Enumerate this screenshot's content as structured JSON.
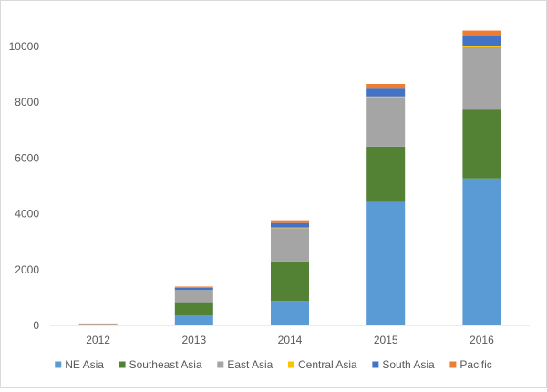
{
  "chart_data": {
    "type": "bar",
    "stacked": true,
    "title": "",
    "xlabel": "",
    "ylabel": "",
    "categories": [
      "2012",
      "2013",
      "2014",
      "2015",
      "2016"
    ],
    "ylim": [
      0,
      10000
    ],
    "yticks": [
      "0",
      "2000",
      "4000",
      "6000",
      "8000",
      "10000"
    ],
    "grid": false,
    "legend_position": "bottom",
    "series": [
      {
        "name": "NE Asia",
        "color": "#5b9bd5",
        "values": [
          10,
          390,
          880,
          4430,
          5270
        ]
      },
      {
        "name": "Southeast Asia",
        "color": "#548235",
        "values": [
          15,
          440,
          1410,
          1980,
          2470
        ]
      },
      {
        "name": "East Asia",
        "color": "#a5a5a5",
        "values": [
          20,
          430,
          1200,
          1760,
          2230
        ]
      },
      {
        "name": "Central Asia",
        "color": "#ffc000",
        "values": [
          1,
          5,
          20,
          40,
          60
        ]
      },
      {
        "name": "South Asia",
        "color": "#4472c4",
        "values": [
          10,
          80,
          160,
          280,
          330
        ]
      },
      {
        "name": "Pacific",
        "color": "#ed7d31",
        "values": [
          14,
          45,
          100,
          170,
          210
        ]
      }
    ]
  }
}
